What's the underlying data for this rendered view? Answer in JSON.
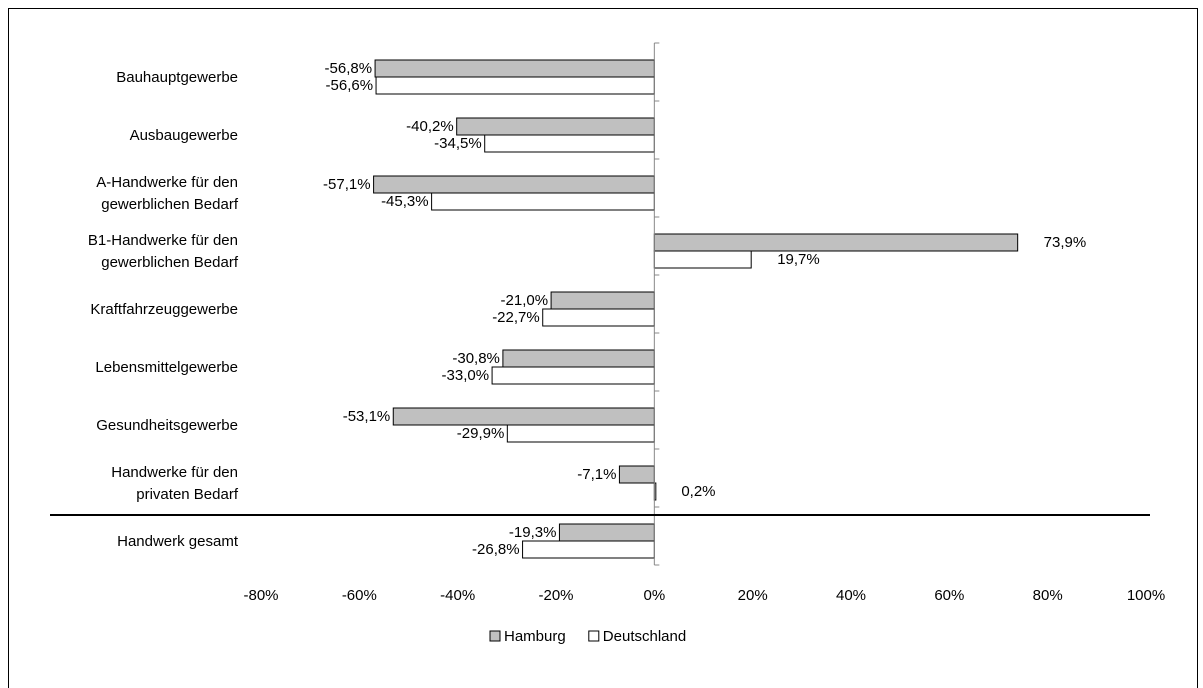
{
  "chart_data": {
    "type": "bar",
    "orientation": "horizontal",
    "categories": [
      [
        "Bauhauptgewerbe"
      ],
      [
        "Ausbaugewerbe"
      ],
      [
        "A-Handwerke für den",
        "gewerblichen Bedarf"
      ],
      [
        "B1-Handwerke für den",
        "gewerblichen Bedarf"
      ],
      [
        "Kraftfahrzeuggewerbe"
      ],
      [
        "Lebensmittelgewerbe"
      ],
      [
        "Gesundheitsgewerbe"
      ],
      [
        "Handwerke für den",
        "privaten Bedarf"
      ],
      [
        "Handwerk gesamt"
      ]
    ],
    "series": [
      {
        "name": "Hamburg",
        "color": "#c0c0c0",
        "values": [
          -56.8,
          -40.2,
          -57.1,
          73.9,
          -21.0,
          -30.8,
          -53.1,
          -7.1,
          -19.3
        ],
        "labels": [
          "-56,8%",
          "-40,2%",
          "-57,1%",
          "73,9%",
          "-21,0%",
          "-30,8%",
          "-53,1%",
          "-7,1%",
          "-19,3%"
        ]
      },
      {
        "name": "Deutschland",
        "color": "#ffffff",
        "values": [
          -56.6,
          -34.5,
          -45.3,
          19.7,
          -22.7,
          -33.0,
          -29.9,
          0.2,
          -26.8
        ],
        "labels": [
          "-56,6%",
          "-34,5%",
          "-45,3%",
          "19,7%",
          "-22,7%",
          "-33,0%",
          "-29,9%",
          "0,2%",
          "-26,8%"
        ]
      }
    ],
    "xlim": [
      -80,
      100
    ],
    "xticks": [
      "-80%",
      "-60%",
      "-40%",
      "-20%",
      "0%",
      "20%",
      "40%",
      "60%",
      "80%",
      "100%"
    ],
    "separator_before_category": 8,
    "legend_position": "bottom",
    "title": "",
    "xlabel": "",
    "ylabel": ""
  }
}
